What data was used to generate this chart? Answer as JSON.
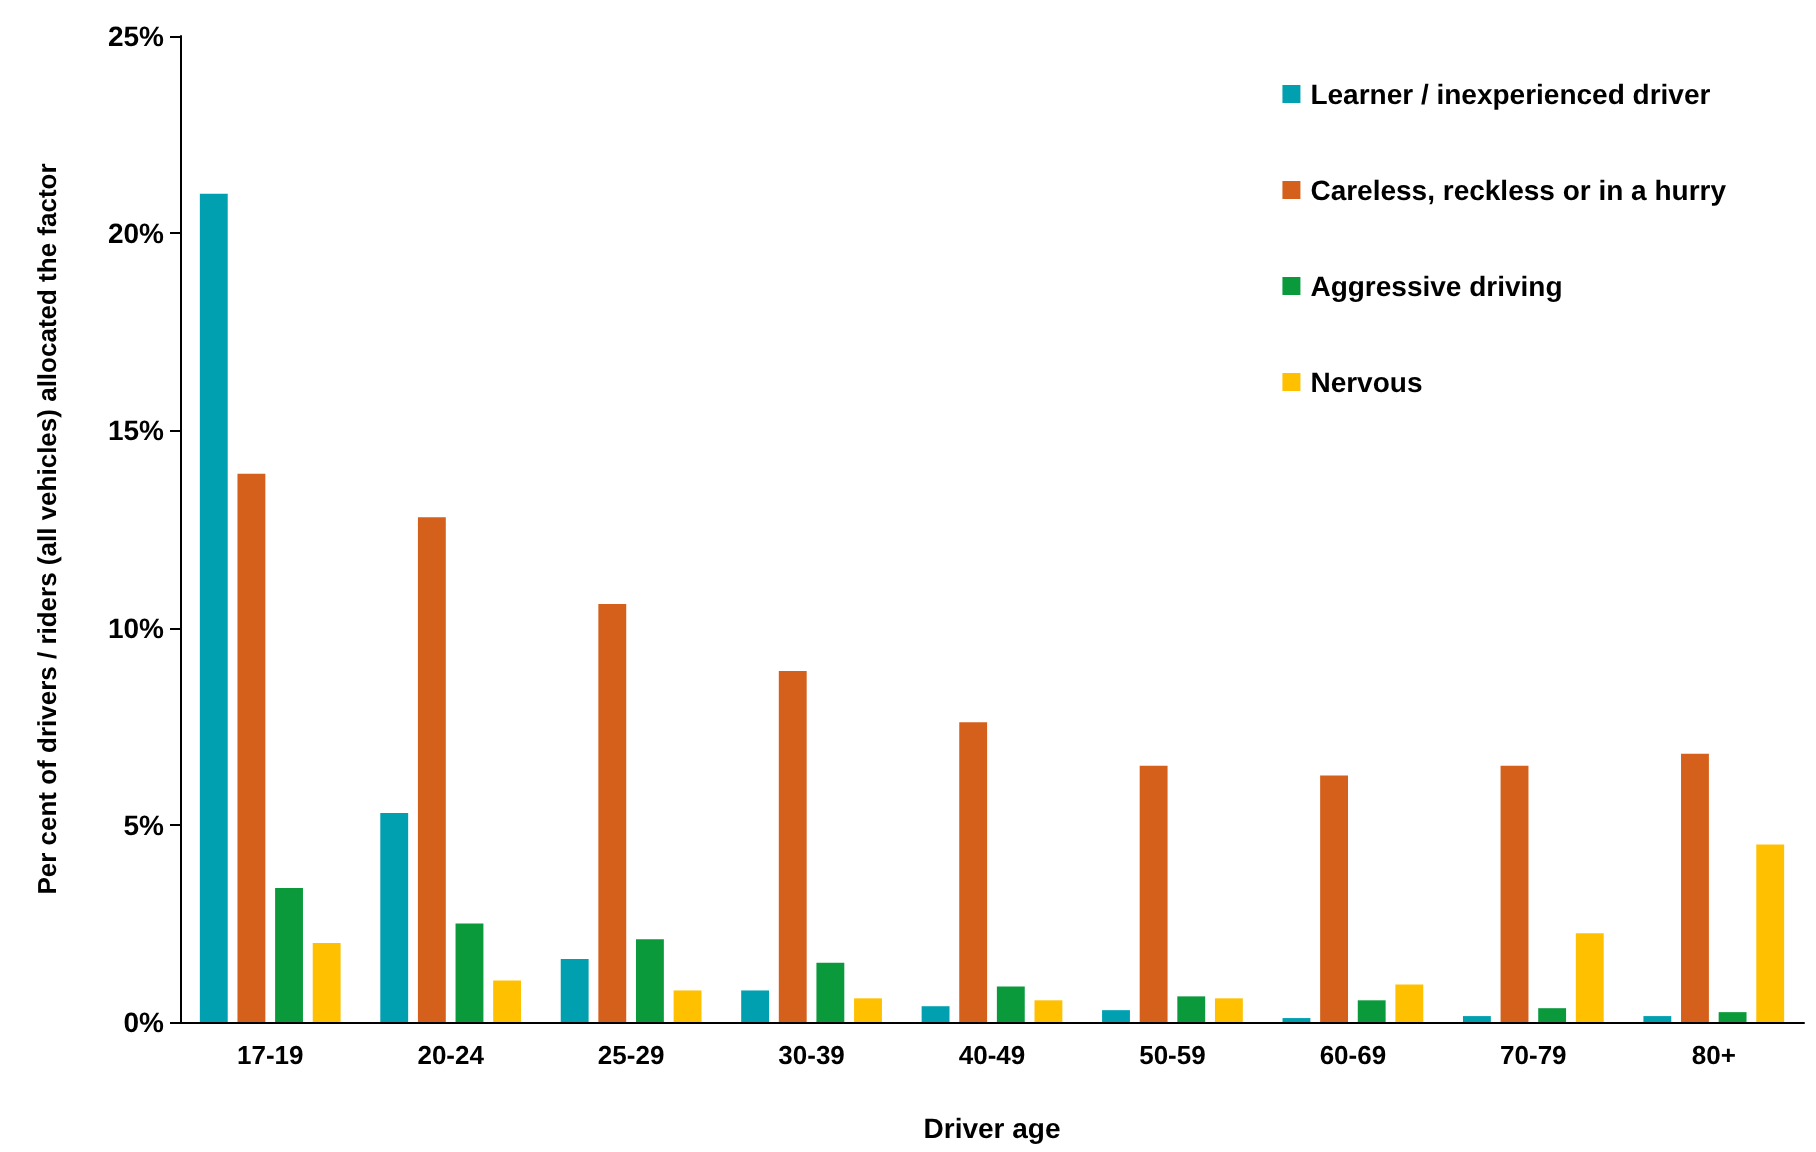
{
  "chart_data": {
    "type": "bar",
    "xlabel": "Driver age",
    "ylabel": "Per cent of drivers / riders (all vehicles) allocated the factor",
    "categories": [
      "17-19",
      "20-24",
      "25-29",
      "30-39",
      "40-49",
      "50-59",
      "60-69",
      "70-79",
      "80+"
    ],
    "series": [
      {
        "name": "Learner / inexperienced driver",
        "color": "#00a0b0",
        "values": [
          21.0,
          5.3,
          1.6,
          0.8,
          0.4,
          0.3,
          0.1,
          0.15,
          0.15
        ]
      },
      {
        "name": "Careless, reckless or in a hurry",
        "color": "#d4601c",
        "values": [
          13.9,
          12.8,
          10.6,
          8.9,
          7.6,
          6.5,
          6.25,
          6.5,
          6.8
        ]
      },
      {
        "name": "Aggressive driving",
        "color": "#0a9a3c",
        "values": [
          3.4,
          2.5,
          2.1,
          1.5,
          0.9,
          0.65,
          0.55,
          0.35,
          0.25
        ]
      },
      {
        "name": "Nervous",
        "color": "#ffc000",
        "values": [
          2.0,
          1.05,
          0.8,
          0.6,
          0.55,
          0.6,
          0.95,
          2.25,
          4.5
        ]
      }
    ],
    "ylim": [
      0,
      25
    ],
    "yticks": [
      {
        "value": 0,
        "label": "0%"
      },
      {
        "value": 5,
        "label": "5%"
      },
      {
        "value": 10,
        "label": "10%"
      },
      {
        "value": 15,
        "label": "15%"
      },
      {
        "value": 20,
        "label": "20%"
      },
      {
        "value": 25,
        "label": "25%"
      }
    ],
    "grid": false,
    "legend": "top right"
  }
}
